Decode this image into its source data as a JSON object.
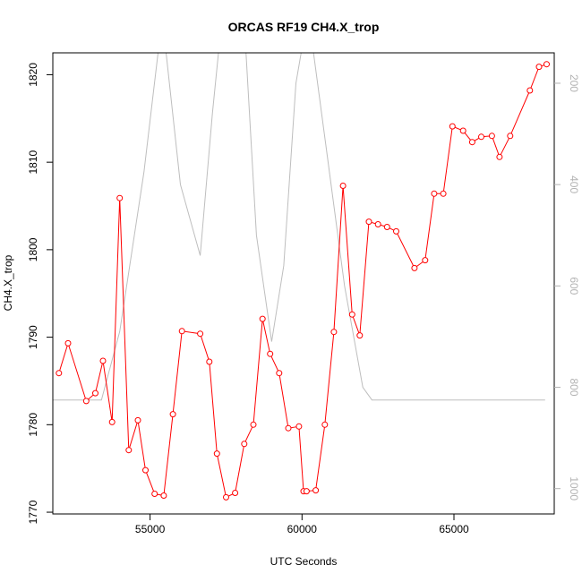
{
  "chart_data": {
    "type": "line",
    "title": "ORCAS RF19 CH4.X_trop",
    "xlabel": "UTC Seconds",
    "ylabel": "CH4.X_trop",
    "xlim": [
      51800,
      68300
    ],
    "ylim": [
      1769.8,
      1822.5
    ],
    "x_ticks": [
      55000,
      60000,
      65000
    ],
    "y_ticks": [
      1770,
      1780,
      1790,
      1800,
      1810,
      1820
    ],
    "y2lim": [
      1050,
      140
    ],
    "y2_ticks": [
      200,
      400,
      600,
      800,
      1000
    ],
    "grid": false,
    "legend": "none",
    "colors": {
      "primary": "#ff0000",
      "secondary": "#bebebe",
      "axis": "#000000",
      "secondary_axis": "#b3b3b3"
    },
    "series": [
      {
        "axis": "left",
        "marker": "open-circle",
        "x": [
          52000,
          52300,
          52900,
          53200,
          53450,
          53750,
          54000,
          54300,
          54600,
          54850,
          55150,
          55450,
          55750,
          56050,
          56650,
          56950,
          57200,
          57500,
          57800,
          58100,
          58400,
          58700,
          58950,
          59250,
          59550,
          59900,
          60050,
          60150,
          60450,
          60750,
          61050,
          61350,
          61650,
          61900,
          62200,
          62500,
          62800,
          63100,
          63700,
          64050,
          64350,
          64650,
          64950,
          65300,
          65600,
          65900,
          66250,
          66500,
          66850,
          67500,
          67800,
          68050
        ],
        "y": [
          1785.9,
          1789.3,
          1782.7,
          1783.6,
          1787.3,
          1780.3,
          1805.9,
          1777.1,
          1780.5,
          1774.8,
          1772.1,
          1771.9,
          1781.2,
          1790.7,
          1790.4,
          1787.2,
          1776.7,
          1771.7,
          1772.2,
          1777.8,
          1780.0,
          1792.1,
          1788.1,
          1785.9,
          1779.6,
          1779.8,
          1772.4,
          1772.4,
          1772.5,
          1780.0,
          1790.6,
          1807.3,
          1792.6,
          1790.2,
          1803.2,
          1802.9,
          1802.6,
          1802.1,
          1797.9,
          1798.8,
          1806.4,
          1806.4,
          1814.1,
          1813.6,
          1812.3,
          1812.9,
          1813.0,
          1810.6,
          1813.0,
          1818.2,
          1820.9,
          1821.2
        ]
      },
      {
        "axis": "right",
        "marker": "none",
        "x": [
          51800,
          53400,
          54000,
          54800,
          55400,
          56000,
          56650,
          57050,
          57350,
          58100,
          58500,
          59000,
          59400,
          59800,
          60200,
          60800,
          61400,
          62000,
          62300,
          68000
        ],
        "y": [
          825,
          825,
          690,
          375,
          70,
          400,
          540,
          260,
          80,
          80,
          500,
          710,
          560,
          200,
          60,
          330,
          600,
          800,
          825,
          825
        ]
      }
    ]
  }
}
